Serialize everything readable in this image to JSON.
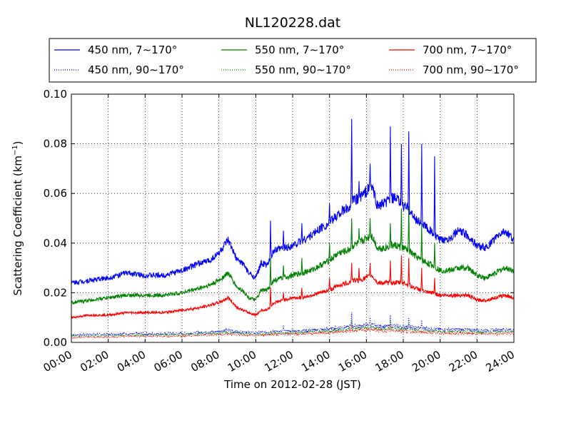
{
  "chart_data": {
    "type": "line",
    "title": "NL120228.dat",
    "xlabel": "Time on 2012-02-28 (JST)",
    "ylabel": "Scattering Coefficient (km",
    "ylabel_exponent": "−1",
    "ylabel_suffix": ")",
    "xlim": [
      0,
      24
    ],
    "ylim": [
      0,
      0.1
    ],
    "x_ticks": [
      0,
      2,
      4,
      6,
      8,
      10,
      12,
      14,
      16,
      18,
      20,
      22,
      24
    ],
    "x_tick_labels": [
      "00:00",
      "02:00",
      "04:00",
      "06:00",
      "08:00",
      "10:00",
      "12:00",
      "14:00",
      "16:00",
      "18:00",
      "20:00",
      "22:00",
      "24:00"
    ],
    "y_ticks": [
      0,
      0.02,
      0.04,
      0.06,
      0.08,
      0.1
    ],
    "y_tick_labels": [
      "0.00",
      "0.02",
      "0.04",
      "0.06",
      "0.08",
      "0.10"
    ],
    "grid": true,
    "legend_position": "top, above plot, 3 columns",
    "x": [
      0,
      1,
      2,
      3,
      4,
      5,
      6,
      7,
      7.5,
      8,
      8.5,
      9,
      9.3,
      9.6,
      10,
      10.3,
      10.6,
      11,
      11.5,
      12,
      12.5,
      13,
      13.5,
      14,
      14.5,
      15,
      15.3,
      15.6,
      16,
      16.3,
      16.6,
      17,
      17.3,
      17.6,
      18,
      18.3,
      18.6,
      19,
      19.3,
      19.6,
      20,
      20.5,
      21,
      21.5,
      22,
      22.5,
      23,
      23.5,
      24
    ],
    "series": [
      {
        "name": "450 nm, 7∼170°",
        "color": "#0000ff",
        "style": "solid",
        "values": [
          0.024,
          0.025,
          0.026,
          0.028,
          0.027,
          0.027,
          0.029,
          0.032,
          0.033,
          0.036,
          0.041,
          0.033,
          0.032,
          0.028,
          0.026,
          0.032,
          0.031,
          0.037,
          0.038,
          0.039,
          0.041,
          0.043,
          0.046,
          0.048,
          0.052,
          0.054,
          0.057,
          0.058,
          0.061,
          0.063,
          0.055,
          0.056,
          0.058,
          0.058,
          0.055,
          0.054,
          0.05,
          0.048,
          0.046,
          0.044,
          0.041,
          0.042,
          0.045,
          0.043,
          0.039,
          0.038,
          0.042,
          0.045,
          0.041
        ],
        "spikes": [
          [
            10.8,
            0.049
          ],
          [
            11.5,
            0.045
          ],
          [
            12.5,
            0.048
          ],
          [
            14,
            0.056
          ],
          [
            15.2,
            0.09
          ],
          [
            15.6,
            0.065
          ],
          [
            16.2,
            0.072
          ],
          [
            17.3,
            0.087
          ],
          [
            17.9,
            0.08
          ],
          [
            18.3,
            0.085
          ],
          [
            19,
            0.08
          ],
          [
            19.7,
            0.075
          ]
        ]
      },
      {
        "name": "550 nm, 7∼170°",
        "color": "#008000",
        "style": "solid",
        "values": [
          0.016,
          0.017,
          0.018,
          0.019,
          0.019,
          0.019,
          0.02,
          0.022,
          0.023,
          0.025,
          0.028,
          0.022,
          0.021,
          0.018,
          0.017,
          0.021,
          0.021,
          0.025,
          0.026,
          0.027,
          0.028,
          0.029,
          0.031,
          0.033,
          0.036,
          0.037,
          0.039,
          0.04,
          0.042,
          0.043,
          0.038,
          0.038,
          0.039,
          0.039,
          0.038,
          0.037,
          0.035,
          0.033,
          0.032,
          0.031,
          0.029,
          0.029,
          0.03,
          0.03,
          0.027,
          0.026,
          0.028,
          0.03,
          0.029
        ],
        "spikes": [
          [
            10.8,
            0.034
          ],
          [
            11.5,
            0.031
          ],
          [
            12.5,
            0.034
          ],
          [
            14,
            0.04
          ],
          [
            15.2,
            0.05
          ],
          [
            15.6,
            0.046
          ],
          [
            16.2,
            0.05
          ],
          [
            17.3,
            0.048
          ],
          [
            17.9,
            0.054
          ],
          [
            18.3,
            0.055
          ],
          [
            19,
            0.048
          ],
          [
            19.7,
            0.04
          ]
        ]
      },
      {
        "name": "700 nm, 7∼170°",
        "color": "#ff0000",
        "style": "solid",
        "values": [
          0.01,
          0.011,
          0.011,
          0.012,
          0.012,
          0.012,
          0.013,
          0.014,
          0.015,
          0.016,
          0.018,
          0.014,
          0.013,
          0.012,
          0.011,
          0.013,
          0.013,
          0.016,
          0.017,
          0.018,
          0.018,
          0.019,
          0.02,
          0.021,
          0.023,
          0.024,
          0.025,
          0.025,
          0.026,
          0.027,
          0.024,
          0.024,
          0.024,
          0.024,
          0.024,
          0.023,
          0.022,
          0.021,
          0.02,
          0.02,
          0.019,
          0.019,
          0.019,
          0.019,
          0.017,
          0.017,
          0.018,
          0.019,
          0.018
        ],
        "spikes": [
          [
            10.8,
            0.022
          ],
          [
            11.5,
            0.02
          ],
          [
            12.5,
            0.022
          ],
          [
            14,
            0.026
          ],
          [
            15.2,
            0.032
          ],
          [
            15.6,
            0.03
          ],
          [
            16.2,
            0.032
          ],
          [
            17.3,
            0.033
          ],
          [
            17.9,
            0.035
          ],
          [
            18.3,
            0.034
          ],
          [
            19,
            0.03
          ],
          [
            19.7,
            0.026
          ]
        ]
      },
      {
        "name": "450 nm, 90∼170°",
        "color": "#0000ff",
        "style": "dotted",
        "values": [
          0.003,
          0.0032,
          0.0033,
          0.0035,
          0.0035,
          0.0035,
          0.0036,
          0.004,
          0.0042,
          0.0045,
          0.005,
          0.0043,
          0.0042,
          0.004,
          0.0038,
          0.0042,
          0.0042,
          0.0045,
          0.0045,
          0.0046,
          0.0048,
          0.005,
          0.0052,
          0.0055,
          0.006,
          0.0062,
          0.0065,
          0.0066,
          0.007,
          0.0072,
          0.0065,
          0.0064,
          0.0065,
          0.0065,
          0.0064,
          0.0062,
          0.006,
          0.0058,
          0.0056,
          0.0055,
          0.0052,
          0.0052,
          0.0053,
          0.0052,
          0.005,
          0.0048,
          0.005,
          0.0052,
          0.005
        ],
        "spikes": [
          [
            11.5,
            0.007
          ],
          [
            15.2,
            0.012
          ],
          [
            16.2,
            0.01
          ],
          [
            17.3,
            0.011
          ],
          [
            18.3,
            0.01
          ],
          [
            19,
            0.009
          ]
        ]
      },
      {
        "name": "550 nm, 90∼170°",
        "color": "#008000",
        "style": "dotted",
        "values": [
          0.0025,
          0.0026,
          0.0027,
          0.003,
          0.003,
          0.003,
          0.0031,
          0.0034,
          0.0036,
          0.0038,
          0.0042,
          0.0037,
          0.0036,
          0.0034,
          0.0032,
          0.0035,
          0.0035,
          0.0038,
          0.0038,
          0.0039,
          0.004,
          0.0042,
          0.0044,
          0.0046,
          0.005,
          0.0052,
          0.0055,
          0.0056,
          0.006,
          0.0061,
          0.0055,
          0.0054,
          0.0055,
          0.0055,
          0.0054,
          0.0052,
          0.005,
          0.0048,
          0.0047,
          0.0046,
          0.0043,
          0.0043,
          0.0044,
          0.0043,
          0.0041,
          0.004,
          0.0041,
          0.0043,
          0.0042
        ],
        "spikes": [
          [
            15.2,
            0.009
          ],
          [
            17.3,
            0.009
          ],
          [
            18.3,
            0.008
          ]
        ]
      },
      {
        "name": "700 nm, 90∼170°",
        "color": "#ff0000",
        "style": "dotted",
        "values": [
          0.002,
          0.0021,
          0.0022,
          0.0024,
          0.0024,
          0.0024,
          0.0025,
          0.0028,
          0.003,
          0.0032,
          0.0035,
          0.0031,
          0.003,
          0.0028,
          0.0027,
          0.003,
          0.003,
          0.0032,
          0.0032,
          0.0033,
          0.0034,
          0.0036,
          0.0037,
          0.0039,
          0.0042,
          0.0044,
          0.0047,
          0.0048,
          0.0051,
          0.0052,
          0.0047,
          0.0046,
          0.0047,
          0.0047,
          0.0046,
          0.0044,
          0.0042,
          0.0041,
          0.004,
          0.0039,
          0.0037,
          0.0036,
          0.0037,
          0.0036,
          0.0034,
          0.0034,
          0.0035,
          0.0036,
          0.0035
        ],
        "spikes": [
          [
            15.2,
            0.007
          ],
          [
            17.3,
            0.007
          ]
        ]
      }
    ]
  }
}
